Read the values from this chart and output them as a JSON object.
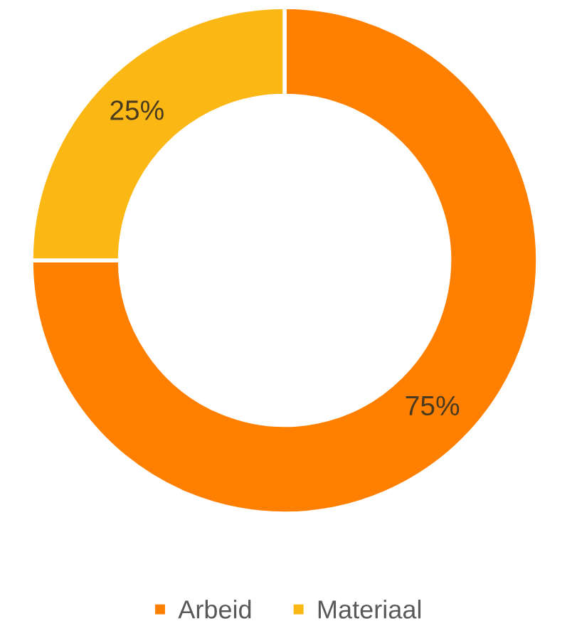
{
  "chart_data": {
    "type": "donut",
    "categories": [
      "Arbeid",
      "Materiaal"
    ],
    "values": [
      75,
      25
    ],
    "colors": [
      "#ff8000",
      "#fbb714"
    ],
    "value_labels": [
      "75%",
      "25%"
    ],
    "legend": "bottom"
  }
}
